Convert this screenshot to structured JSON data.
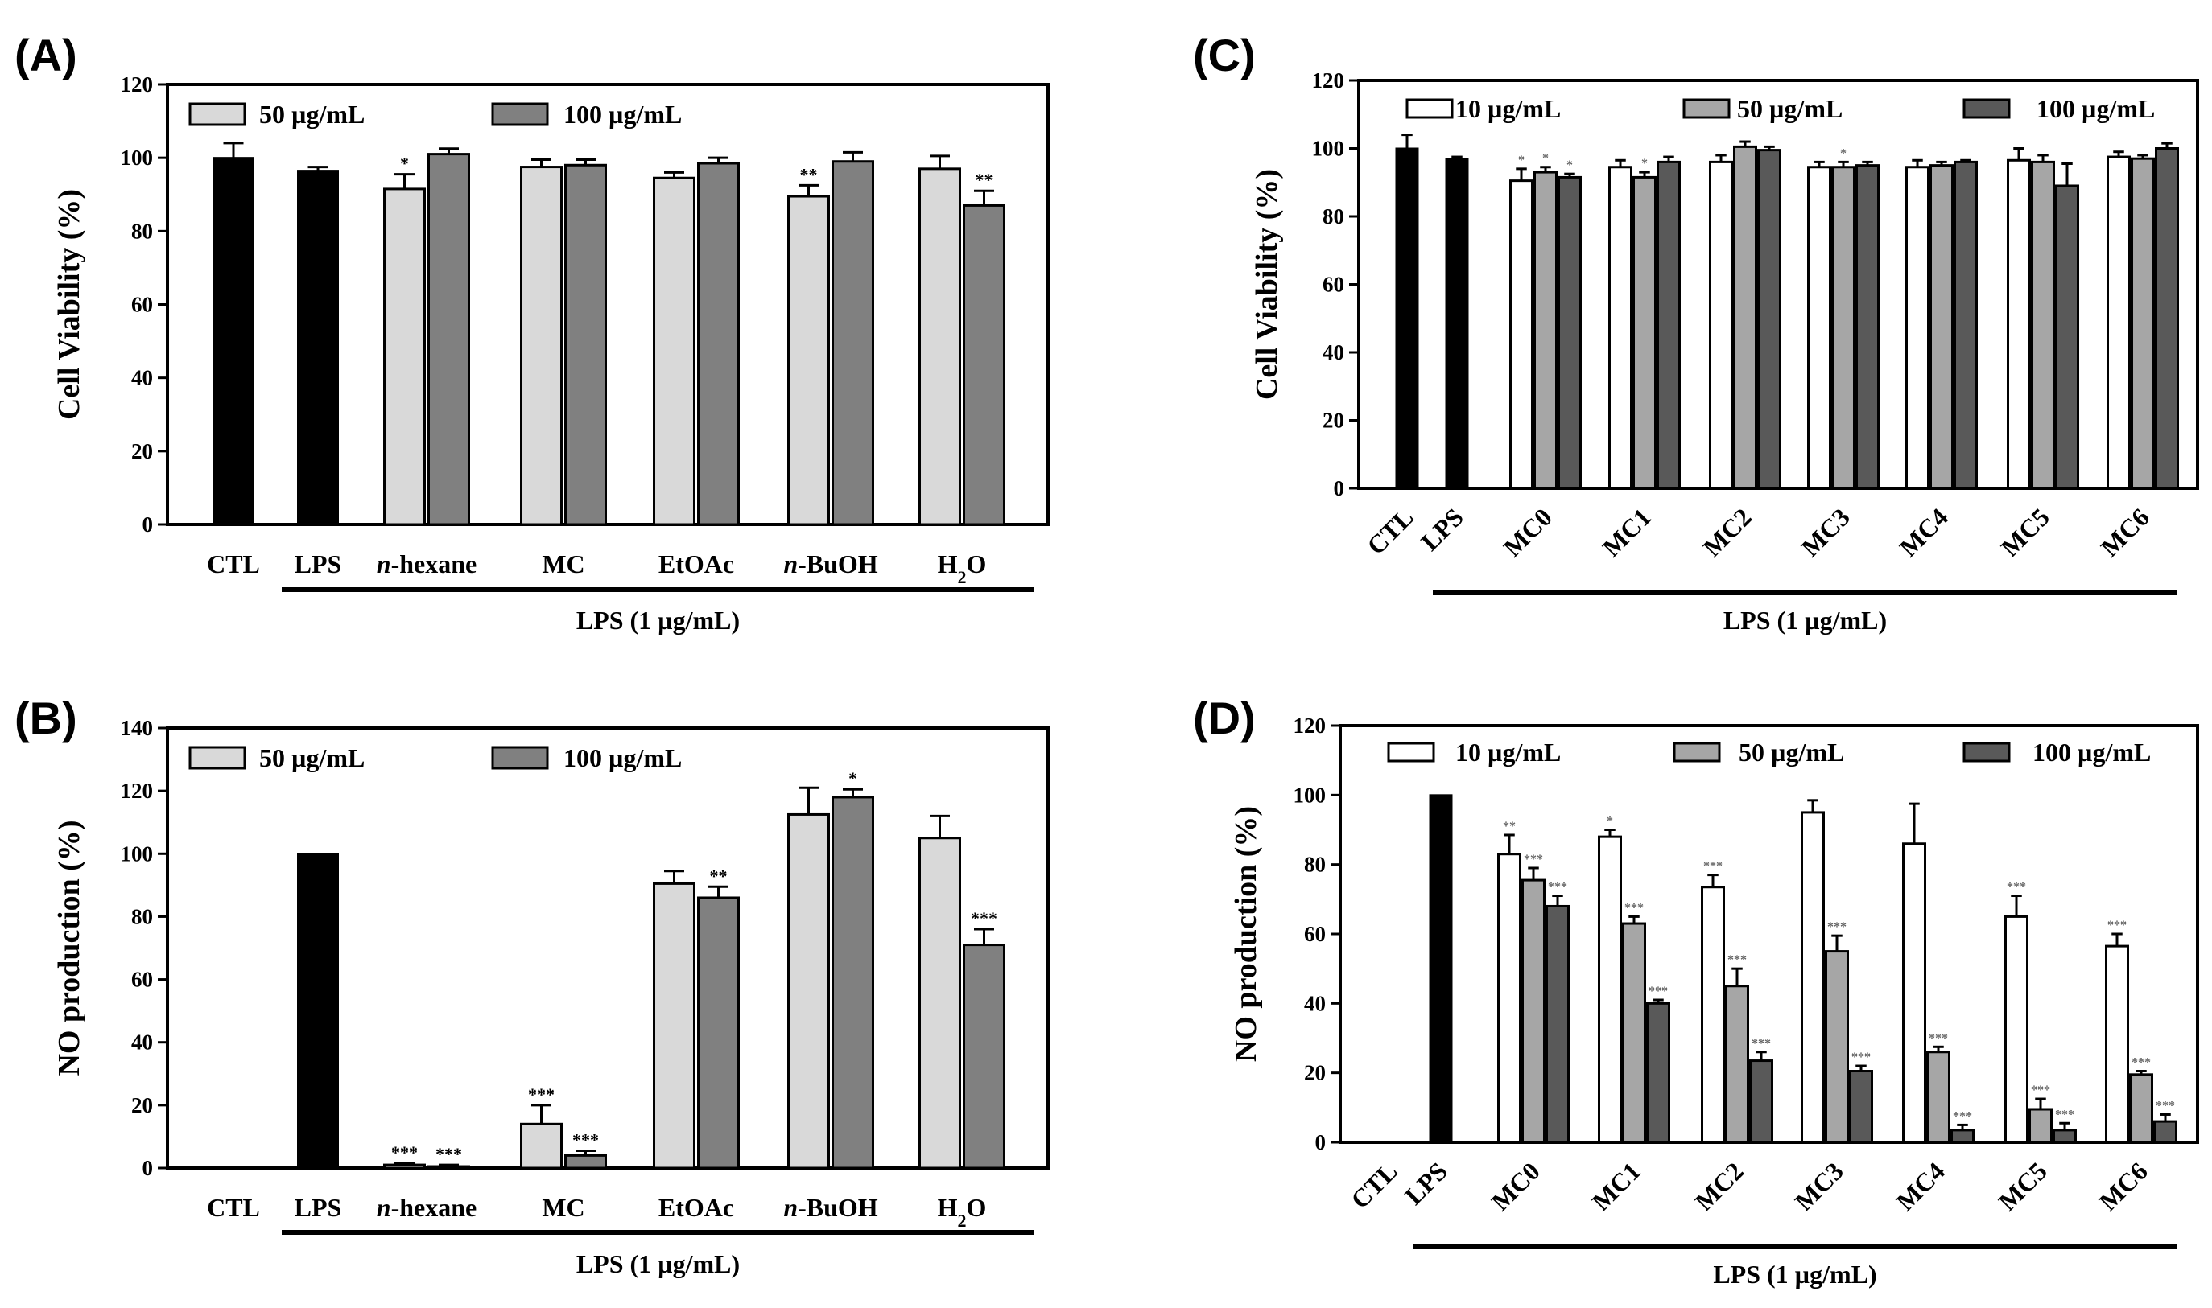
{
  "figure": {
    "panels": [
      {
        "letter": "(A)",
        "type": "bar",
        "ylabel": "Cell Viability (%)",
        "ylim": [
          0,
          120
        ],
        "yticks": [
          0,
          20,
          40,
          60,
          80,
          100,
          120
        ],
        "categories": [
          "CTL",
          "LPS",
          "n-hexane",
          "MC",
          "EtOAc",
          "n-BuOH",
          "H2O"
        ],
        "category_display": [
          {
            "italic": "",
            "text": "CTL",
            "sub": "",
            "after": ""
          },
          {
            "italic": "",
            "text": "LPS",
            "sub": "",
            "after": ""
          },
          {
            "italic": "n",
            "text": "-hexane",
            "sub": "",
            "after": ""
          },
          {
            "italic": "",
            "text": "MC",
            "sub": "",
            "after": ""
          },
          {
            "italic": "",
            "text": "EtOAc",
            "sub": "",
            "after": ""
          },
          {
            "italic": "n",
            "text": "-BuOH",
            "sub": "",
            "after": ""
          },
          {
            "italic": "",
            "text": "H",
            "sub": "2",
            "after": "O"
          }
        ],
        "rotate_labels": false,
        "group_label": "LPS (1 µg/mL)",
        "controls": [
          {
            "category": "CTL",
            "value": 100,
            "error": 4
          },
          {
            "category": "LPS",
            "value": 96.5,
            "error": 1
          }
        ],
        "series": [
          {
            "name": "50 µg/mL",
            "color": "#d9d9d9",
            "values": [
              91.5,
              97.5,
              94.5,
              89.5,
              97
            ],
            "errors": [
              4,
              2,
              1.5,
              3,
              3.5
            ],
            "sig": [
              "*",
              "",
              "",
              "**",
              ""
            ]
          },
          {
            "name": "100 µg/mL",
            "color": "#808080",
            "values": [
              101,
              98,
              98.5,
              99,
              87
            ],
            "errors": [
              1.5,
              1.5,
              1.5,
              2.5,
              4
            ],
            "sig": [
              "",
              "",
              "",
              "",
              "**"
            ]
          }
        ]
      },
      {
        "letter": "(B)",
        "type": "bar",
        "ylabel": "NO production (%)",
        "ylim": [
          0,
          140
        ],
        "yticks": [
          0,
          20,
          40,
          60,
          80,
          100,
          120,
          140
        ],
        "categories": [
          "CTL",
          "LPS",
          "n-hexane",
          "MC",
          "EtOAc",
          "n-BuOH",
          "H2O"
        ],
        "category_display": [
          {
            "italic": "",
            "text": "CTL",
            "sub": "",
            "after": ""
          },
          {
            "italic": "",
            "text": "LPS",
            "sub": "",
            "after": ""
          },
          {
            "italic": "n",
            "text": "-hexane",
            "sub": "",
            "after": ""
          },
          {
            "italic": "",
            "text": "MC",
            "sub": "",
            "after": ""
          },
          {
            "italic": "",
            "text": "EtOAc",
            "sub": "",
            "after": ""
          },
          {
            "italic": "n",
            "text": "-BuOH",
            "sub": "",
            "after": ""
          },
          {
            "italic": "",
            "text": "H",
            "sub": "2",
            "after": "O"
          }
        ],
        "rotate_labels": false,
        "group_label": "LPS (1 µg/mL)",
        "controls": [
          {
            "category": "CTL",
            "value": 0,
            "error": 0
          },
          {
            "category": "LPS",
            "value": 100,
            "error": 0
          }
        ],
        "series": [
          {
            "name": "50 µg/mL",
            "color": "#d9d9d9",
            "values": [
              1,
              14,
              90.5,
              112.5,
              105
            ],
            "errors": [
              0.5,
              6,
              4,
              8.5,
              7
            ],
            "sig": [
              "***",
              "***",
              "",
              "",
              ""
            ]
          },
          {
            "name": "100 µg/mL",
            "color": "#808080",
            "values": [
              0.5,
              4,
              86,
              118,
              71
            ],
            "errors": [
              0.5,
              1.5,
              3.5,
              2.5,
              5
            ],
            "sig": [
              "***",
              "***",
              "**",
              "*",
              "***"
            ]
          }
        ]
      },
      {
        "letter": "(C)",
        "type": "bar",
        "ylabel": "Cell Viability (%)",
        "ylim": [
          0,
          120
        ],
        "yticks": [
          0,
          20,
          40,
          60,
          80,
          100,
          120
        ],
        "categories": [
          "CTL",
          "LPS",
          "MC0",
          "MC1",
          "MC2",
          "MC3",
          "MC4",
          "MC5",
          "MC6"
        ],
        "category_display": [
          {
            "italic": "",
            "text": "CTL",
            "sub": "",
            "after": ""
          },
          {
            "italic": "",
            "text": "LPS",
            "sub": "",
            "after": ""
          },
          {
            "italic": "",
            "text": "MC0",
            "sub": "",
            "after": ""
          },
          {
            "italic": "",
            "text": "MC1",
            "sub": "",
            "after": ""
          },
          {
            "italic": "",
            "text": "MC2",
            "sub": "",
            "after": ""
          },
          {
            "italic": "",
            "text": "MC3",
            "sub": "",
            "after": ""
          },
          {
            "italic": "",
            "text": "MC4",
            "sub": "",
            "after": ""
          },
          {
            "italic": "",
            "text": "MC5",
            "sub": "",
            "after": ""
          },
          {
            "italic": "",
            "text": "MC6",
            "sub": "",
            "after": ""
          }
        ],
        "rotate_labels": true,
        "group_label": "LPS (1 µg/mL)",
        "controls": [
          {
            "category": "CTL",
            "value": 100,
            "error": 4
          },
          {
            "category": "LPS",
            "value": 97,
            "error": 0.5
          }
        ],
        "series": [
          {
            "name": "10 µg/mL",
            "color": "#ffffff",
            "values": [
              90.5,
              94.5,
              96,
              94.5,
              94.5,
              96.5,
              97.5
            ],
            "errors": [
              3.5,
              2,
              2,
              1.5,
              2,
              3.5,
              1.5
            ],
            "sig": [
              "*",
              "",
              "",
              "",
              "",
              "",
              ""
            ]
          },
          {
            "name": "50 µg/mL",
            "color": "#a6a6a6",
            "values": [
              93,
              91.5,
              100.5,
              94.5,
              95,
              96,
              97
            ],
            "errors": [
              1.5,
              1.5,
              1.5,
              1.5,
              1,
              2,
              1
            ],
            "sig": [
              "*",
              "*",
              "",
              "*",
              "",
              "",
              ""
            ]
          },
          {
            "name": "100 µg/mL",
            "color": "#595959",
            "values": [
              91.5,
              96,
              99.5,
              95,
              96,
              89,
              100
            ],
            "errors": [
              1,
              1.5,
              1,
              1,
              0.5,
              6.5,
              1.5
            ],
            "sig": [
              "*",
              "",
              "",
              "",
              "",
              "",
              ""
            ]
          }
        ]
      },
      {
        "letter": "(D)",
        "type": "bar",
        "ylabel": "NO production (%)",
        "ylim": [
          0,
          120
        ],
        "yticks": [
          0,
          20,
          40,
          60,
          80,
          100,
          120
        ],
        "categories": [
          "CTL",
          "LPS",
          "MC0",
          "MC1",
          "MC2",
          "MC3",
          "MC4",
          "MC5",
          "MC6"
        ],
        "category_display": [
          {
            "italic": "",
            "text": "CTL",
            "sub": "",
            "after": ""
          },
          {
            "italic": "",
            "text": "LPS",
            "sub": "",
            "after": ""
          },
          {
            "italic": "",
            "text": "MC0",
            "sub": "",
            "after": ""
          },
          {
            "italic": "",
            "text": "MC1",
            "sub": "",
            "after": ""
          },
          {
            "italic": "",
            "text": "MC2",
            "sub": "",
            "after": ""
          },
          {
            "italic": "",
            "text": "MC3",
            "sub": "",
            "after": ""
          },
          {
            "italic": "",
            "text": "MC4",
            "sub": "",
            "after": ""
          },
          {
            "italic": "",
            "text": "MC5",
            "sub": "",
            "after": ""
          },
          {
            "italic": "",
            "text": "MC6",
            "sub": "",
            "after": ""
          }
        ],
        "rotate_labels": true,
        "group_label": "LPS (1 µg/mL)",
        "controls": [
          {
            "category": "CTL",
            "value": 0,
            "error": 0
          },
          {
            "category": "LPS",
            "value": 100,
            "error": 0
          }
        ],
        "series": [
          {
            "name": "10 µg/mL",
            "color": "#ffffff",
            "values": [
              83,
              88,
              73.5,
              95,
              86,
              65,
              56.5
            ],
            "errors": [
              5.5,
              2,
              3.5,
              3.5,
              11.5,
              6,
              3.5
            ],
            "sig": [
              "**",
              "*",
              "***",
              "",
              "",
              "***",
              "***"
            ]
          },
          {
            "name": "50 µg/mL",
            "color": "#a6a6a6",
            "values": [
              75.5,
              63,
              45,
              55,
              26,
              9.5,
              19.5
            ],
            "errors": [
              3.5,
              2,
              5,
              4.5,
              1.5,
              3,
              1
            ],
            "sig": [
              "***",
              "***",
              "***",
              "***",
              "***",
              "***",
              "***"
            ]
          },
          {
            "name": "100 µg/mL",
            "color": "#595959",
            "values": [
              68,
              40,
              23.5,
              20.5,
              3.5,
              3.5,
              6
            ],
            "errors": [
              3,
              1,
              2.5,
              1.5,
              1.5,
              2,
              2
            ],
            "sig": [
              "***",
              "***",
              "***",
              "***",
              "***",
              "***",
              "***"
            ]
          }
        ]
      }
    ]
  }
}
